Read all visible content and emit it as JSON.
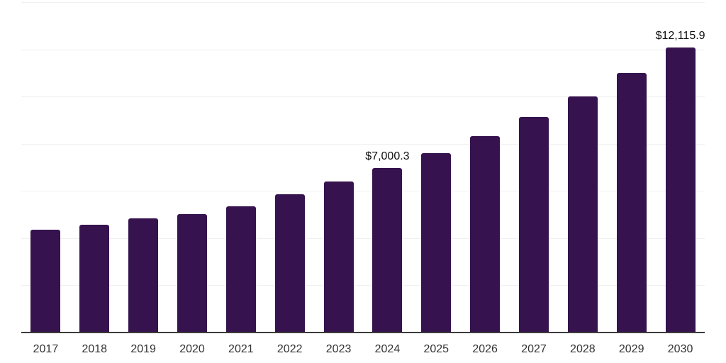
{
  "chart_data": {
    "type": "bar",
    "title": "",
    "xlabel": "",
    "ylabel": "",
    "categories": [
      "2017",
      "2018",
      "2019",
      "2020",
      "2021",
      "2022",
      "2023",
      "2024",
      "2025",
      "2026",
      "2027",
      "2028",
      "2029",
      "2030"
    ],
    "values": [
      4385,
      4605,
      4855,
      5045,
      5390,
      5880,
      6430,
      7000.3,
      7625,
      8365,
      9150,
      10045,
      11020,
      12115.9
    ],
    "value_labels": [
      "",
      "",
      "",
      "",
      "",
      "",
      "",
      "$7,000.3",
      "",
      "",
      "",
      "",
      "",
      "$12,115.9"
    ],
    "ylim": [
      0,
      14000
    ],
    "grid_step": 2000,
    "grid": true,
    "legend": false,
    "colors": {
      "bar": "#36134e",
      "grid_line": "#f0f0f0",
      "axis_line": "#3c3c3c",
      "tick_label": "#333333",
      "value_label": "#0d0d0d",
      "background": "#ffffff"
    }
  }
}
